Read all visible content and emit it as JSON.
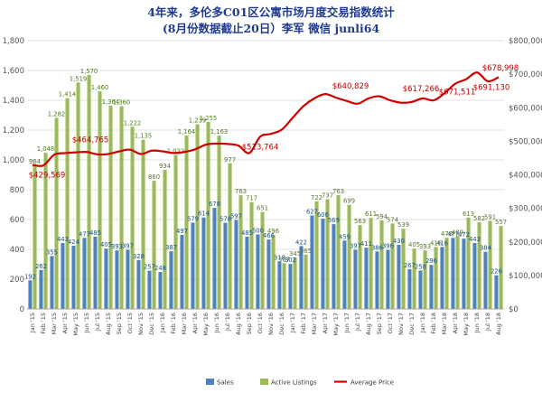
{
  "chart_data": {
    "type": "bar",
    "title": "4年来，多伦多C01区公寓市场月度交易指数统计",
    "subtitle": "(8月份数据截止20日）李军  微信 junli64",
    "categories": [
      "Jan '15",
      "Feb '15",
      "Mar '15",
      "Apr '15",
      "May '15",
      "Jun '15",
      "Jul '15",
      "Aug '15",
      "Sep '15",
      "Oct '15",
      "Nov '15",
      "Dec '15",
      "Jan '16",
      "Feb '16",
      "Mar '16",
      "Apr '16",
      "May '16",
      "Jun '16",
      "Jul '16",
      "Aug '16",
      "Sep '16",
      "Oct '16",
      "Nov '16",
      "Dec '16",
      "Jan '17",
      "Feb '17",
      "Mar '17",
      "Apr '17",
      "May '17",
      "Jun '17",
      "Jul '17",
      "Aug '17",
      "Sep '17",
      "Oct '17",
      "Nov '17",
      "Dec '17",
      "Jan '18",
      "Feb '18",
      "Mar '18",
      "Apr '18",
      "May '18",
      "Jun '18",
      "Jul '18",
      "Aug '18"
    ],
    "series": [
      {
        "name": "Sales",
        "axis": "left",
        "color": "#4f81bd",
        "values": [
          192,
          262,
          355,
          443,
          424,
          477,
          485,
          405,
          393,
          397,
          328,
          257,
          248,
          387,
          497,
          579,
          614,
          678,
          578,
          597,
          485,
          500,
          466,
          318,
          302,
          422,
          627,
          606,
          569,
          459,
          397,
          411,
          386,
          396,
          430,
          267,
          258,
          296,
          416,
          477,
          472,
          443,
          384,
          226
        ]
      },
      {
        "name": "Active Listings",
        "axis": "left",
        "color": "#9bbb59",
        "values": [
          964,
          1048,
          1282,
          1414,
          1519,
          1570,
          1460,
          1364,
          1360,
          1222,
          1135,
          860,
          934,
          1032,
          1164,
          1239,
          1255,
          1163,
          977,
          763,
          717,
          651,
          496,
          307,
          345,
          365,
          722,
          737,
          763,
          699,
          563,
          611,
          594,
          574,
          539,
          405,
          393,
          416,
          478,
          489,
          613,
          582,
          591,
          557
        ]
      },
      {
        "name": "Average Price",
        "axis": "right",
        "color": "#cc0000",
        "type": "line",
        "values": [
          429569,
          428000,
          460000,
          464765,
          467000,
          468000,
          461000,
          462000,
          470000,
          475000,
          462000,
          472000,
          470000,
          465000,
          468000,
          476000,
          490000,
          493000,
          492000,
          487000,
          465000,
          513764,
          522000,
          535000,
          570000,
          605000,
          628000,
          640829,
          630000,
          620000,
          612000,
          628000,
          634000,
          622000,
          615000,
          617266,
          628000,
          622000,
          643000,
          671511,
          685000,
          705000,
          678998,
          691130
        ]
      }
    ],
    "value_labels": {
      "Sales": [
        "192",
        "262",
        "355",
        "443",
        "424",
        "477",
        "485",
        "405",
        "393",
        "397",
        "328",
        "257",
        "248",
        "387",
        "497",
        "579",
        "614",
        "678",
        "578",
        "597",
        "485",
        "500",
        "466",
        "318",
        "302",
        "422",
        "627",
        "606",
        "569",
        "459",
        "397",
        "411",
        "386",
        "396",
        "430",
        "267",
        "258",
        "296",
        "416",
        "477",
        "472",
        "443",
        "384",
        "226"
      ],
      "Active Listings": [
        "964",
        "1,048",
        "1,282",
        "1,414",
        "1,519",
        "1,570",
        "1,460",
        "1,364",
        "1,360",
        "1,222",
        "1,135",
        "860",
        "934",
        "1,032",
        "1,164",
        "1,239",
        "1,255",
        "1,163",
        "977",
        "763",
        "717",
        "651",
        "496",
        "307",
        "345",
        "365",
        "722",
        "737",
        "763",
        "699",
        "563",
        "611",
        "594",
        "574",
        "539",
        "405",
        "393",
        "416",
        "478",
        "489",
        "613",
        "582",
        "591",
        "557"
      ]
    },
    "price_labels": [
      {
        "index": 0,
        "text": "$429,569"
      },
      {
        "index": 3,
        "text": "$464,765"
      },
      {
        "index": 21,
        "text": "$513,764"
      },
      {
        "index": 27,
        "text": "$640,829"
      },
      {
        "index": 35,
        "text": "$617,266"
      },
      {
        "index": 39,
        "text": "$671,511"
      },
      {
        "index": 42,
        "text": "$678,998"
      },
      {
        "index": 43,
        "text": "$691,130"
      }
    ],
    "left_axis": {
      "min": 0,
      "max": 1800,
      "step": 200,
      "ticks": [
        "0",
        "200",
        "400",
        "600",
        "800",
        "1,000",
        "1,200",
        "1,400",
        "1,600",
        "1,800"
      ]
    },
    "right_axis": {
      "min": 0,
      "max": 800000,
      "step": 100000,
      "ticks": [
        "$0",
        "$100,000",
        "$200,000",
        "$300,000",
        "$400,000",
        "$500,000",
        "$600,000",
        "$700,000",
        "$800,000"
      ]
    },
    "grid": true,
    "legend_position": "bottom"
  }
}
